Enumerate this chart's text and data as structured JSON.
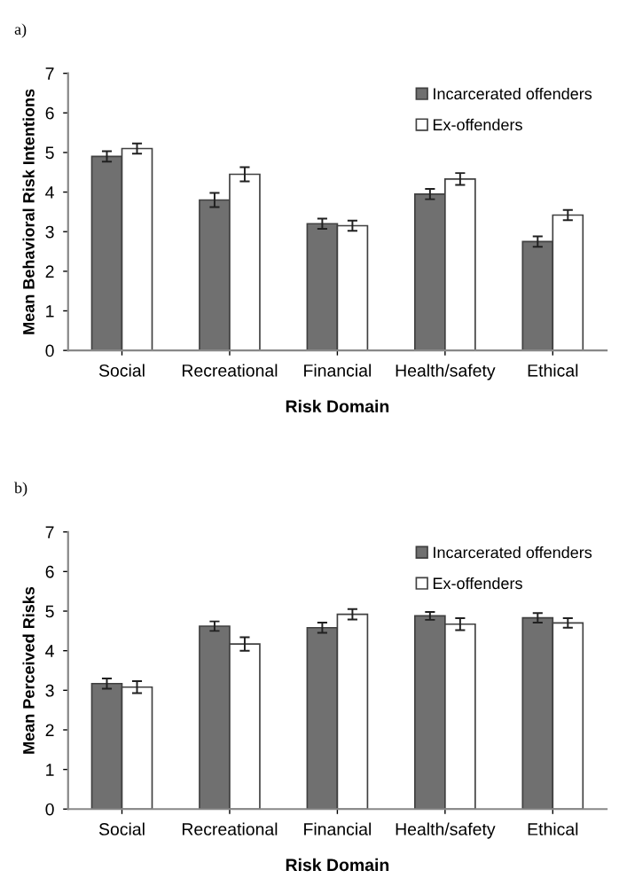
{
  "chart_data": [
    {
      "type": "bar",
      "title": "a)",
      "xlabel": "Risk Domain",
      "ylabel": "Mean Behavioral Risk Intentions",
      "categories": [
        "Social",
        "Recreational",
        "Financial",
        "Health/safety",
        "Ethical"
      ],
      "series": [
        {
          "name": "Incarcerated offenders",
          "color": "#707070",
          "values": [
            4.9,
            3.8,
            3.2,
            3.95,
            2.75
          ],
          "errors": [
            0.13,
            0.18,
            0.13,
            0.13,
            0.13
          ]
        },
        {
          "name": "Ex-offenders",
          "color": "#ffffff",
          "values": [
            5.1,
            4.45,
            3.15,
            4.33,
            3.42
          ],
          "errors": [
            0.13,
            0.18,
            0.13,
            0.15,
            0.13
          ]
        }
      ],
      "ylim": [
        0,
        7
      ],
      "yticks": [
        0,
        1,
        2,
        3,
        4,
        5,
        6,
        7
      ],
      "legend": "top right"
    },
    {
      "type": "bar",
      "title": "b)",
      "xlabel": "Risk Domain",
      "ylabel": "Mean Perceived Risks",
      "categories": [
        "Social",
        "Recreational",
        "Financial",
        "Health/safety",
        "Ethical"
      ],
      "series": [
        {
          "name": "Incarcerated offenders",
          "color": "#707070",
          "values": [
            3.17,
            4.62,
            4.58,
            4.88,
            4.83
          ],
          "errors": [
            0.13,
            0.12,
            0.13,
            0.1,
            0.12
          ]
        },
        {
          "name": "Ex-offenders",
          "color": "#ffffff",
          "values": [
            3.08,
            4.17,
            4.92,
            4.67,
            4.7
          ],
          "errors": [
            0.15,
            0.17,
            0.13,
            0.15,
            0.12
          ]
        }
      ],
      "ylim": [
        0,
        7
      ],
      "yticks": [
        0,
        1,
        2,
        3,
        4,
        5,
        6,
        7
      ],
      "legend": "top right"
    }
  ]
}
